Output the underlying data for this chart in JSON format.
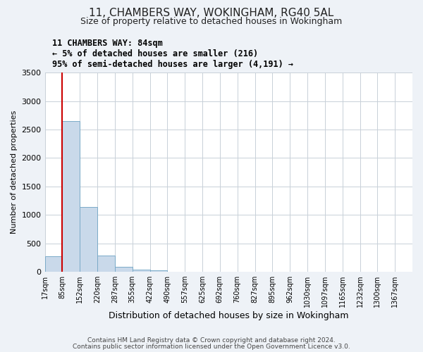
{
  "title": "11, CHAMBERS WAY, WOKINGHAM, RG40 5AL",
  "subtitle": "Size of property relative to detached houses in Wokingham",
  "xlabel": "Distribution of detached houses by size in Wokingham",
  "ylabel": "Number of detached properties",
  "bin_labels": [
    "17sqm",
    "85sqm",
    "152sqm",
    "220sqm",
    "287sqm",
    "355sqm",
    "422sqm",
    "490sqm",
    "557sqm",
    "625sqm",
    "692sqm",
    "760sqm",
    "827sqm",
    "895sqm",
    "962sqm",
    "1030sqm",
    "1097sqm",
    "1165sqm",
    "1232sqm",
    "1300sqm",
    "1367sqm"
  ],
  "bar_heights": [
    270,
    2650,
    1140,
    280,
    90,
    40,
    20,
    0,
    0,
    0,
    0,
    0,
    0,
    0,
    0,
    0,
    0,
    0,
    0,
    0,
    0
  ],
  "bar_color": "#c9d9ea",
  "bar_edge_color": "#7aaac8",
  "ylim": [
    0,
    3500
  ],
  "yticks": [
    0,
    500,
    1000,
    1500,
    2000,
    2500,
    3000,
    3500
  ],
  "red_line_x": 1,
  "annotation_title": "11 CHAMBERS WAY: 84sqm",
  "annotation_line1": "← 5% of detached houses are smaller (216)",
  "annotation_line2": "95% of semi-detached houses are larger (4,191) →",
  "annotation_box_color": "#ffffff",
  "annotation_box_edge_color": "#cc0000",
  "red_line_color": "#cc0000",
  "footer1": "Contains HM Land Registry data © Crown copyright and database right 2024.",
  "footer2": "Contains public sector information licensed under the Open Government Licence v3.0.",
  "background_color": "#eef2f7",
  "plot_bg_color": "#ffffff",
  "grid_color": "#c8d0d8"
}
